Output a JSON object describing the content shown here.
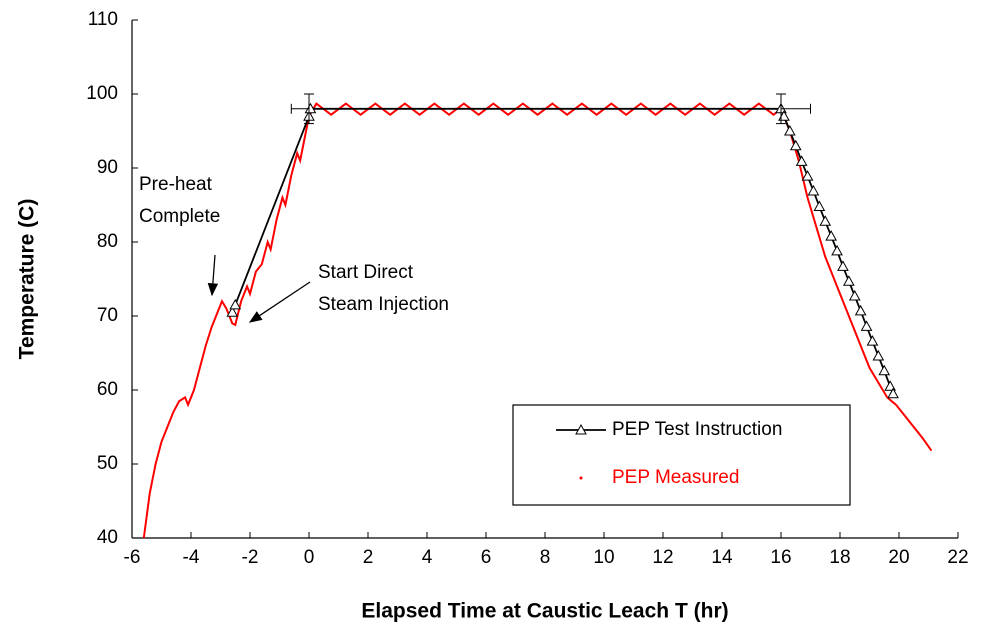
{
  "chart_data": {
    "type": "line",
    "xlabel": "Elapsed Time at Caustic Leach T (hr)",
    "ylabel": "Temperature (C)",
    "xlim": [
      -6,
      22
    ],
    "ylim": [
      40,
      110
    ],
    "xticks": [
      -6,
      -4,
      -2,
      0,
      2,
      4,
      6,
      8,
      10,
      12,
      14,
      16,
      18,
      20,
      22
    ],
    "yticks": [
      40,
      50,
      60,
      70,
      80,
      90,
      100,
      110
    ],
    "legend": "lower right",
    "series": [
      {
        "name": "PEP Test Instruction",
        "color": "#000000",
        "marker": "triangle",
        "x": [
          -2.6,
          -2.5,
          0,
          0.05,
          16,
          16.1,
          16.3,
          16.5,
          16.7,
          16.9,
          17.1,
          17.3,
          17.5,
          17.7,
          17.9,
          18.1,
          18.3,
          18.5,
          18.7,
          18.9,
          19.1,
          19.3,
          19.5,
          19.7,
          19.8
        ],
        "values": [
          70.5,
          71.5,
          97,
          98,
          98,
          97,
          95,
          93,
          90.9,
          88.9,
          86.9,
          84.8,
          82.8,
          80.8,
          78.8,
          76.7,
          74.7,
          72.7,
          70.7,
          68.6,
          66.6,
          64.6,
          62.6,
          60.5,
          59.5
        ]
      },
      {
        "name": "PEP Measured",
        "color": "#ff0000",
        "marker": "dot",
        "x": [
          -5.6,
          -5.4,
          -5.2,
          -5.0,
          -4.8,
          -4.6,
          -4.4,
          -4.2,
          -4.1,
          -3.9,
          -3.7,
          -3.5,
          -3.3,
          -3.1,
          -2.95,
          -2.8,
          -2.6,
          -2.5,
          -2.3,
          -2.1,
          -2.0,
          -1.8,
          -1.6,
          -1.4,
          -1.3,
          -1.1,
          -0.9,
          -0.8,
          -0.6,
          -0.4,
          -0.3,
          -0.1,
          0,
          0.25,
          0.75,
          1.25,
          1.75,
          2.25,
          2.75,
          3.25,
          3.75,
          4.25,
          4.75,
          5.25,
          5.75,
          6.25,
          6.75,
          7.25,
          7.75,
          8.25,
          8.75,
          9.25,
          9.75,
          10.25,
          10.75,
          11.25,
          11.75,
          12.25,
          12.75,
          13.25,
          13.75,
          14.25,
          14.75,
          15.25,
          15.75,
          16,
          16.3,
          16.6,
          16.9,
          17.2,
          17.5,
          17.8,
          18.1,
          18.4,
          18.7,
          19,
          19.3,
          19.6,
          19.9,
          20.2,
          20.5,
          20.8,
          21.1
        ],
        "values": [
          40,
          46,
          50,
          53,
          55,
          57,
          58.5,
          59,
          58,
          60,
          63,
          66,
          68.5,
          70.5,
          72,
          71,
          69,
          68.8,
          72,
          74,
          73,
          76,
          77,
          80,
          79,
          83,
          86,
          85,
          89,
          92,
          91,
          95,
          97,
          98.7,
          97.2,
          98.7,
          97.2,
          98.7,
          97.2,
          98.7,
          97.2,
          98.7,
          97.2,
          98.7,
          97.2,
          98.7,
          97.2,
          98.7,
          97.2,
          98.7,
          97.2,
          98.7,
          97.2,
          98.7,
          97.2,
          98.7,
          97.2,
          98.7,
          97.2,
          98.7,
          97.2,
          98.7,
          97.2,
          98.7,
          97.2,
          98,
          95,
          91,
          86,
          82,
          78,
          75,
          72,
          69,
          66,
          63,
          61,
          59,
          58,
          56.5,
          55,
          53.5,
          51.8
        ]
      }
    ],
    "error_bars": [
      {
        "x": 0,
        "y": 98,
        "x_low": -0.6,
        "x_high": 0,
        "y_low": 96,
        "y_high": 100
      },
      {
        "x": 16,
        "y": 98,
        "x_low": 16,
        "x_high": 17,
        "y_low": 96,
        "y_high": 100
      }
    ],
    "annotations": [
      {
        "lines": [
          "Pre-heat",
          "Complete"
        ]
      },
      {
        "lines": [
          "Start Direct",
          "Steam Injection"
        ]
      }
    ]
  }
}
